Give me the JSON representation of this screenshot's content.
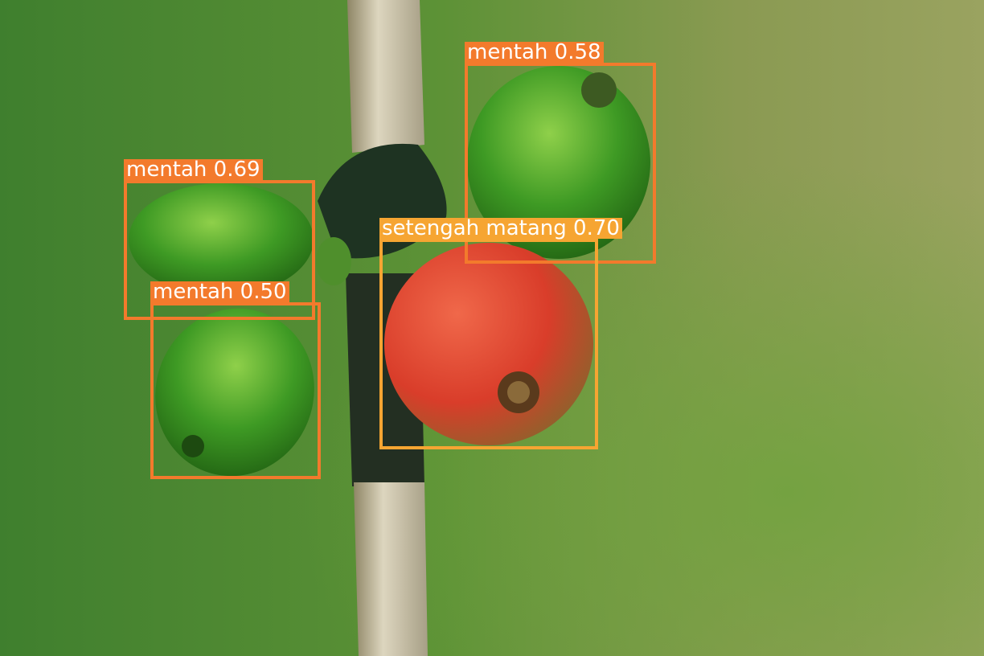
{
  "detections": [
    {
      "label": "mentah 0.58",
      "class": "mentah",
      "confidence": 0.58,
      "color": "#f37a2c"
    },
    {
      "label": "mentah 0.69",
      "class": "mentah",
      "confidence": 0.69,
      "color": "#f37a2c"
    },
    {
      "label": "setengah matang 0.70",
      "class": "setengah matang",
      "confidence": 0.7,
      "color": "#f6a532"
    },
    {
      "label": "mentah 0.50",
      "class": "mentah",
      "confidence": 0.5,
      "color": "#f37a2c"
    }
  ],
  "colors": {
    "mentah": "#f37a2c",
    "setengah_matang": "#f6a532"
  }
}
